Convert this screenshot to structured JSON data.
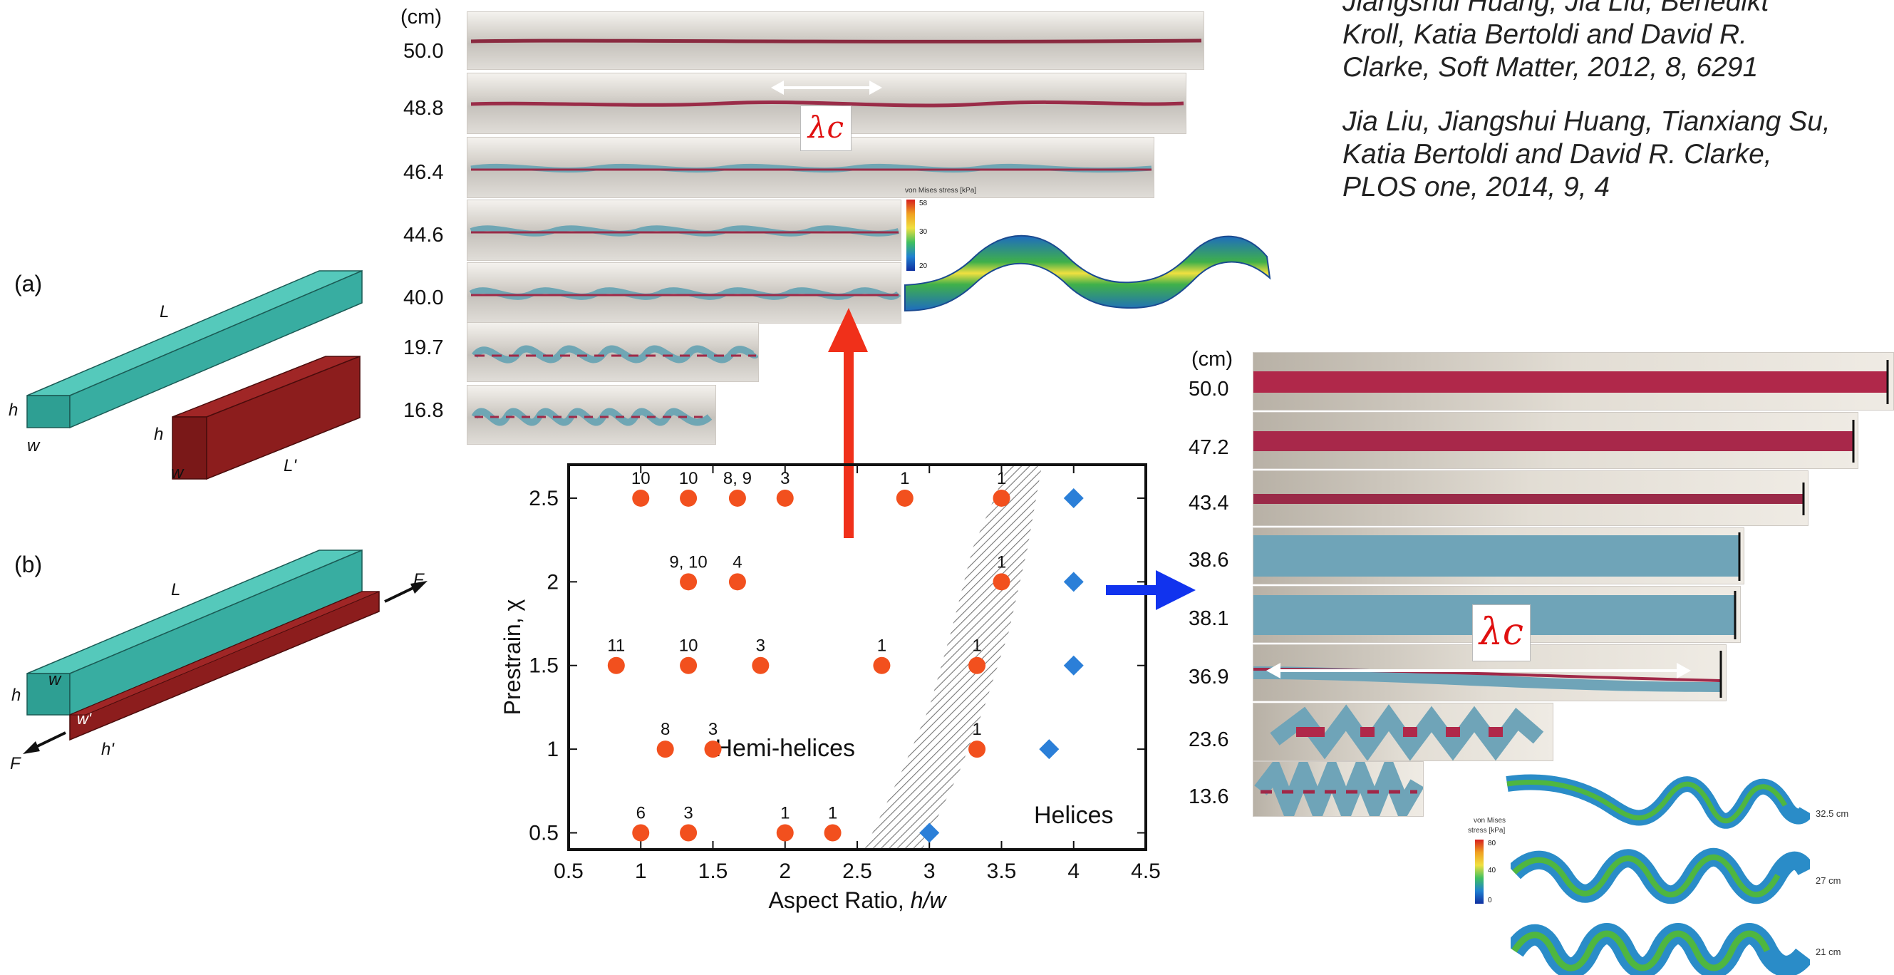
{
  "references": {
    "ref1_line1": "Jiangshui Huang, Jia Liu, Benedikt",
    "ref1_line2": "Kroll, Katia Bertoldi and David R.",
    "ref1_line3": "Clarke, Soft Matter, 2012, 8, 6291",
    "ref2_line1": "Jia Liu, Jiangshui Huang, Tianxiang Su,",
    "ref2_line2": "Katia Bertoldi and David R. Clarke,",
    "ref2_line3": "PLOS one, 2014, 9, 4"
  },
  "schematic": {
    "panel_a": "(a)",
    "panel_b": "(b)",
    "L": "L",
    "L_prime": "L'",
    "h": "h",
    "w": "w",
    "w_prime": "w'",
    "h_prime": "h'",
    "F": "F"
  },
  "left_strips": {
    "unit": "(cm)",
    "lengths": [
      "50.0",
      "48.8",
      "46.4",
      "44.6",
      "40.0",
      "19.7",
      "16.8"
    ]
  },
  "right_strips": {
    "unit": "(cm)",
    "lengths": [
      "50.0",
      "47.2",
      "43.4",
      "38.6",
      "38.1",
      "36.9",
      "23.6",
      "13.6"
    ]
  },
  "lambda_label": "λc",
  "fem_top": {
    "title": "von Mises stress [kPa]",
    "ticks": [
      "58",
      "30",
      "20"
    ]
  },
  "fem_right": {
    "title_line1": "von Mises",
    "title_line2": "stress [kPa]",
    "ticks": [
      "80",
      "40",
      "0"
    ],
    "labels": [
      "32.5 cm",
      "27 cm",
      "21 cm"
    ]
  },
  "colors": {
    "marker_circle": "#f2501e",
    "marker_diamond": "#2b7fd8",
    "arrow_up": "#f0301a",
    "arrow_right": "#1133ee",
    "beam_top": "#3db3a6",
    "beam_bottom": "#7a1a1a"
  },
  "chart_data": {
    "type": "scatter",
    "xlabel": "Aspect Ratio, h/w",
    "ylabel": "Prestrain, χ",
    "xlim": [
      0.5,
      4.5
    ],
    "ylim": [
      0.4,
      2.7
    ],
    "xticks": [
      "0.5",
      "1",
      "1.5",
      "2",
      "2.5",
      "3",
      "3.5",
      "4",
      "4.5"
    ],
    "yticks": [
      "0.5",
      "1",
      "1.5",
      "2",
      "2.5"
    ],
    "region_labels": [
      "Hemi-helices",
      "Helices"
    ],
    "series": [
      {
        "marker": "circle",
        "points": [
          {
            "x": 1.0,
            "y": 2.5,
            "label": "10"
          },
          {
            "x": 1.33,
            "y": 2.5,
            "label": "10"
          },
          {
            "x": 1.67,
            "y": 2.5,
            "label": "8, 9"
          },
          {
            "x": 2.0,
            "y": 2.5,
            "label": "3"
          },
          {
            "x": 2.83,
            "y": 2.5,
            "label": "1"
          },
          {
            "x": 3.5,
            "y": 2.5,
            "label": "1"
          },
          {
            "x": 1.33,
            "y": 2.0,
            "label": "9, 10"
          },
          {
            "x": 1.67,
            "y": 2.0,
            "label": "4"
          },
          {
            "x": 3.5,
            "y": 2.0,
            "label": "1"
          },
          {
            "x": 0.83,
            "y": 1.5,
            "label": "11"
          },
          {
            "x": 1.33,
            "y": 1.5,
            "label": "10"
          },
          {
            "x": 1.83,
            "y": 1.5,
            "label": "3"
          },
          {
            "x": 2.67,
            "y": 1.5,
            "label": "1"
          },
          {
            "x": 3.33,
            "y": 1.5,
            "label": "1"
          },
          {
            "x": 1.17,
            "y": 1.0,
            "label": "8"
          },
          {
            "x": 1.5,
            "y": 1.0,
            "label": "3"
          },
          {
            "x": 3.33,
            "y": 1.0,
            "label": "1"
          },
          {
            "x": 1.0,
            "y": 0.5,
            "label": "6"
          },
          {
            "x": 1.33,
            "y": 0.5,
            "label": "3"
          },
          {
            "x": 2.0,
            "y": 0.5,
            "label": "1"
          },
          {
            "x": 2.33,
            "y": 0.5,
            "label": "1"
          }
        ]
      },
      {
        "marker": "diamond",
        "points": [
          {
            "x": 4.0,
            "y": 2.5
          },
          {
            "x": 4.0,
            "y": 2.0
          },
          {
            "x": 4.0,
            "y": 1.5
          },
          {
            "x": 3.83,
            "y": 1.0
          },
          {
            "x": 3.0,
            "y": 0.5
          }
        ]
      }
    ]
  }
}
